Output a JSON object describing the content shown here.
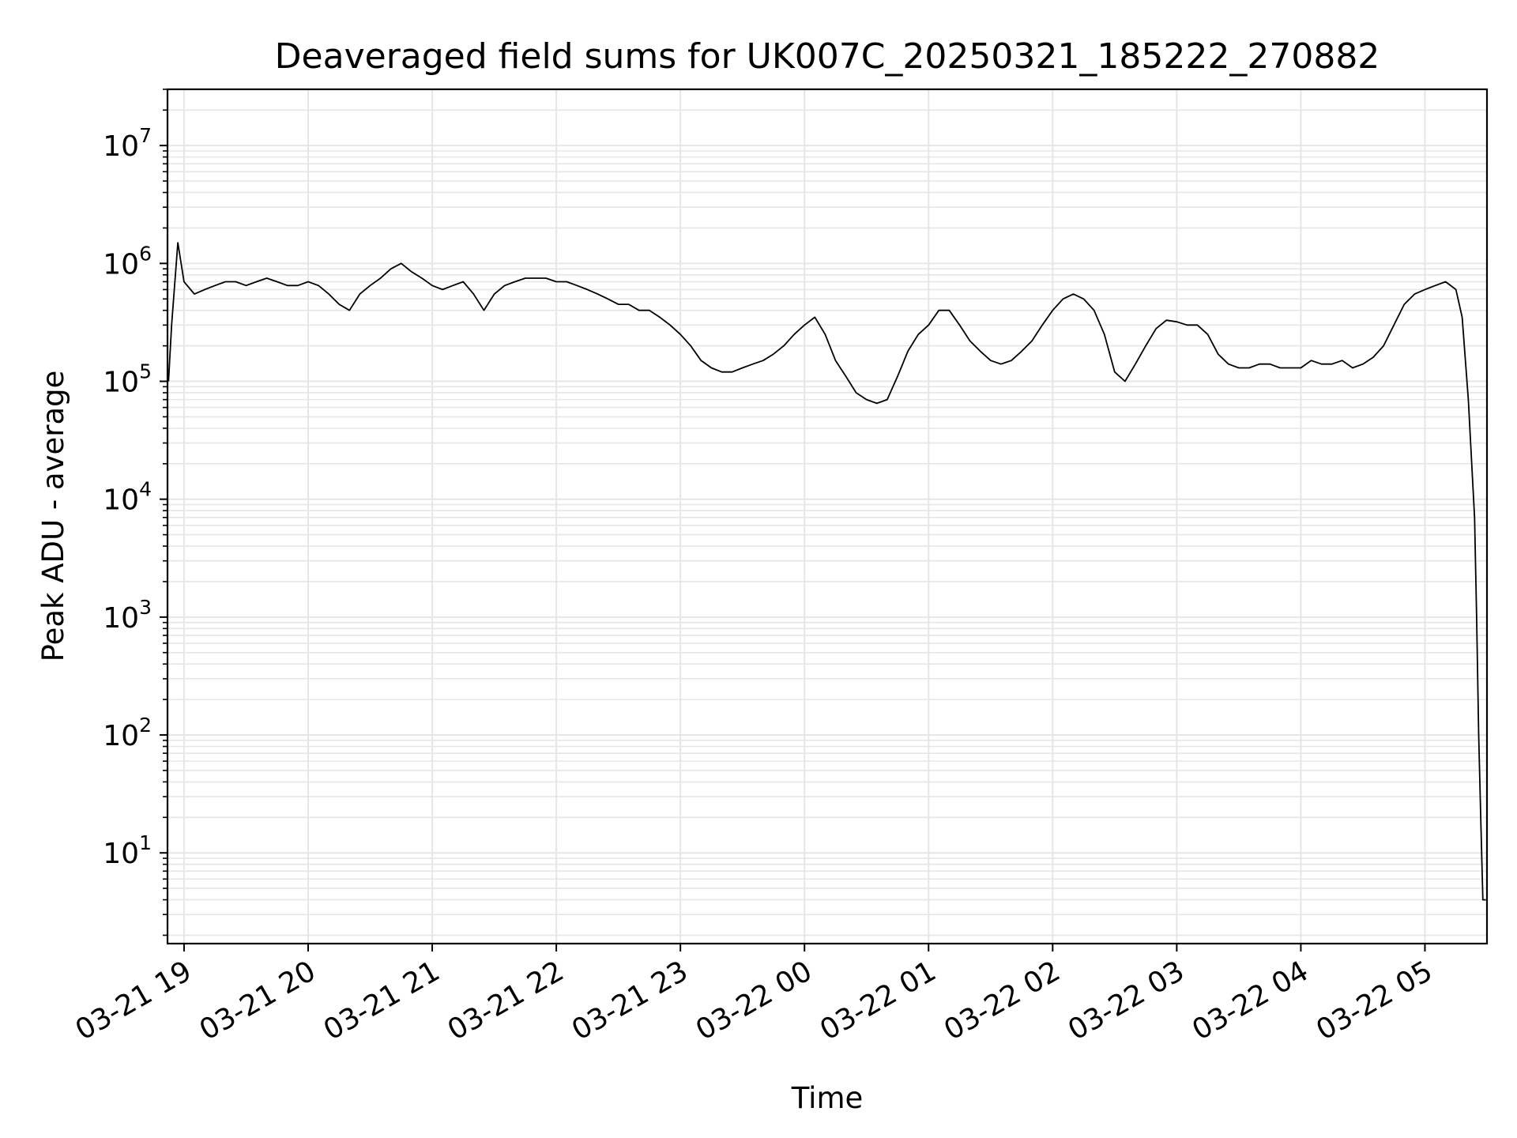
{
  "chart_data": {
    "type": "line",
    "title": "Deaveraged field sums for UK007C_20250321_185222_270882",
    "xlabel": "Time",
    "ylabel": "Peak ADU - average",
    "yscale": "log",
    "ylim": [
      1.7,
      30000000
    ],
    "xlim": [
      "2025-03-21T18:52:00",
      "2025-03-22T05:30:00"
    ],
    "grid": true,
    "grid_minor": true,
    "line_color": "#000000",
    "grid_color": "#e6e6e6",
    "x_ticks": [
      {
        "t": "2025-03-21T19:00:00",
        "label": "03-21 19"
      },
      {
        "t": "2025-03-21T20:00:00",
        "label": "03-21 20"
      },
      {
        "t": "2025-03-21T21:00:00",
        "label": "03-21 21"
      },
      {
        "t": "2025-03-21T22:00:00",
        "label": "03-21 22"
      },
      {
        "t": "2025-03-21T23:00:00",
        "label": "03-21 23"
      },
      {
        "t": "2025-03-22T00:00:00",
        "label": "03-22 00"
      },
      {
        "t": "2025-03-22T01:00:00",
        "label": "03-22 01"
      },
      {
        "t": "2025-03-22T02:00:00",
        "label": "03-22 02"
      },
      {
        "t": "2025-03-22T03:00:00",
        "label": "03-22 03"
      },
      {
        "t": "2025-03-22T04:00:00",
        "label": "03-22 04"
      },
      {
        "t": "2025-03-22T05:00:00",
        "label": "03-22 05"
      }
    ],
    "y_ticks": [
      {
        "value": 10,
        "base": "10",
        "exp": "1"
      },
      {
        "value": 100,
        "base": "10",
        "exp": "2"
      },
      {
        "value": 1000,
        "base": "10",
        "exp": "3"
      },
      {
        "value": 10000,
        "base": "10",
        "exp": "4"
      },
      {
        "value": 100000,
        "base": "10",
        "exp": "5"
      },
      {
        "value": 1000000,
        "base": "10",
        "exp": "6"
      },
      {
        "value": 10000000,
        "base": "10",
        "exp": "7"
      }
    ],
    "series": [
      {
        "x": [
          "2025-03-21T18:52:30",
          "2025-03-21T18:54:00",
          "2025-03-21T18:57:00",
          "2025-03-21T19:00:00",
          "2025-03-21T19:05:00",
          "2025-03-21T19:10:00",
          "2025-03-21T19:15:00",
          "2025-03-21T19:20:00",
          "2025-03-21T19:25:00",
          "2025-03-21T19:30:00",
          "2025-03-21T19:35:00",
          "2025-03-21T19:40:00",
          "2025-03-21T19:45:00",
          "2025-03-21T19:50:00",
          "2025-03-21T19:55:00",
          "2025-03-21T20:00:00",
          "2025-03-21T20:05:00",
          "2025-03-21T20:10:00",
          "2025-03-21T20:15:00",
          "2025-03-21T20:20:00",
          "2025-03-21T20:25:00",
          "2025-03-21T20:30:00",
          "2025-03-21T20:35:00",
          "2025-03-21T20:40:00",
          "2025-03-21T20:45:00",
          "2025-03-21T20:50:00",
          "2025-03-21T20:55:00",
          "2025-03-21T21:00:00",
          "2025-03-21T21:05:00",
          "2025-03-21T21:10:00",
          "2025-03-21T21:15:00",
          "2025-03-21T21:20:00",
          "2025-03-21T21:25:00",
          "2025-03-21T21:30:00",
          "2025-03-21T21:35:00",
          "2025-03-21T21:40:00",
          "2025-03-21T21:45:00",
          "2025-03-21T21:50:00",
          "2025-03-21T21:55:00",
          "2025-03-21T22:00:00",
          "2025-03-21T22:05:00",
          "2025-03-21T22:10:00",
          "2025-03-21T22:15:00",
          "2025-03-21T22:20:00",
          "2025-03-21T22:25:00",
          "2025-03-21T22:30:00",
          "2025-03-21T22:35:00",
          "2025-03-21T22:40:00",
          "2025-03-21T22:45:00",
          "2025-03-21T22:50:00",
          "2025-03-21T22:55:00",
          "2025-03-21T23:00:00",
          "2025-03-21T23:05:00",
          "2025-03-21T23:10:00",
          "2025-03-21T23:15:00",
          "2025-03-21T23:20:00",
          "2025-03-21T23:25:00",
          "2025-03-21T23:30:00",
          "2025-03-21T23:35:00",
          "2025-03-21T23:40:00",
          "2025-03-21T23:45:00",
          "2025-03-21T23:50:00",
          "2025-03-21T23:55:00",
          "2025-03-22T00:00:00",
          "2025-03-22T00:05:00",
          "2025-03-22T00:10:00",
          "2025-03-22T00:15:00",
          "2025-03-22T00:20:00",
          "2025-03-22T00:25:00",
          "2025-03-22T00:30:00",
          "2025-03-22T00:35:00",
          "2025-03-22T00:40:00",
          "2025-03-22T00:45:00",
          "2025-03-22T00:50:00",
          "2025-03-22T00:55:00",
          "2025-03-22T01:00:00",
          "2025-03-22T01:05:00",
          "2025-03-22T01:10:00",
          "2025-03-22T01:15:00",
          "2025-03-22T01:20:00",
          "2025-03-22T01:25:00",
          "2025-03-22T01:30:00",
          "2025-03-22T01:35:00",
          "2025-03-22T01:40:00",
          "2025-03-22T01:45:00",
          "2025-03-22T01:50:00",
          "2025-03-22T01:55:00",
          "2025-03-22T02:00:00",
          "2025-03-22T02:05:00",
          "2025-03-22T02:10:00",
          "2025-03-22T02:15:00",
          "2025-03-22T02:20:00",
          "2025-03-22T02:25:00",
          "2025-03-22T02:30:00",
          "2025-03-22T02:35:00",
          "2025-03-22T02:40:00",
          "2025-03-22T02:45:00",
          "2025-03-22T02:50:00",
          "2025-03-22T02:55:00",
          "2025-03-22T03:00:00",
          "2025-03-22T03:05:00",
          "2025-03-22T03:10:00",
          "2025-03-22T03:15:00",
          "2025-03-22T03:20:00",
          "2025-03-22T03:25:00",
          "2025-03-22T03:30:00",
          "2025-03-22T03:35:00",
          "2025-03-22T03:40:00",
          "2025-03-22T03:45:00",
          "2025-03-22T03:50:00",
          "2025-03-22T03:55:00",
          "2025-03-22T04:00:00",
          "2025-03-22T04:05:00",
          "2025-03-22T04:10:00",
          "2025-03-22T04:15:00",
          "2025-03-22T04:20:00",
          "2025-03-22T04:25:00",
          "2025-03-22T04:30:00",
          "2025-03-22T04:35:00",
          "2025-03-22T04:40:00",
          "2025-03-22T04:45:00",
          "2025-03-22T04:50:00",
          "2025-03-22T04:55:00",
          "2025-03-22T05:00:00",
          "2025-03-22T05:05:00",
          "2025-03-22T05:10:00",
          "2025-03-22T05:15:00",
          "2025-03-22T05:18:00",
          "2025-03-22T05:21:00",
          "2025-03-22T05:24:00",
          "2025-03-22T05:25:00",
          "2025-03-22T05:26:00",
          "2025-03-22T05:27:00",
          "2025-03-22T05:28:00",
          "2025-03-22T05:29:00",
          "2025-03-22T05:29:30"
        ],
        "y": [
          100000,
          300000,
          1500000,
          700000,
          550000,
          600000,
          650000,
          700000,
          700000,
          650000,
          700000,
          750000,
          700000,
          650000,
          650000,
          700000,
          650000,
          550000,
          450000,
          400000,
          550000,
          650000,
          750000,
          900000,
          1000000,
          850000,
          750000,
          650000,
          600000,
          650000,
          700000,
          550000,
          400000,
          550000,
          650000,
          700000,
          750000,
          750000,
          750000,
          700000,
          700000,
          650000,
          600000,
          550000,
          500000,
          450000,
          450000,
          400000,
          400000,
          350000,
          300000,
          250000,
          200000,
          150000,
          130000,
          120000,
          120000,
          130000,
          140000,
          150000,
          170000,
          200000,
          250000,
          300000,
          350000,
          250000,
          150000,
          110000,
          80000,
          70000,
          65000,
          70000,
          110000,
          180000,
          250000,
          300000,
          400000,
          400000,
          300000,
          220000,
          180000,
          150000,
          140000,
          150000,
          180000,
          220000,
          300000,
          400000,
          500000,
          550000,
          500000,
          400000,
          250000,
          120000,
          100000,
          140000,
          200000,
          280000,
          330000,
          320000,
          300000,
          300000,
          250000,
          170000,
          140000,
          130000,
          130000,
          140000,
          140000,
          130000,
          130000,
          130000,
          150000,
          140000,
          140000,
          150000,
          130000,
          140000,
          160000,
          200000,
          300000,
          450000,
          550000,
          600000,
          650000,
          700000,
          600000,
          350000,
          70000,
          7000,
          1000,
          100,
          20,
          4,
          4,
          4
        ]
      }
    ]
  }
}
